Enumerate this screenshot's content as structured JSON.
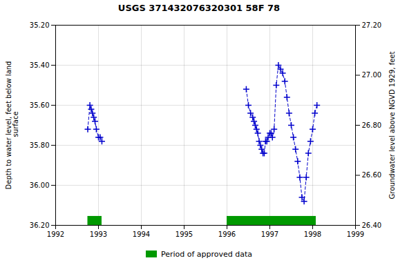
{
  "chart_data": {
    "type": "line",
    "title": "USGS 371432076320301 58F 78",
    "ylabel": "Depth to water level, feet below land\n surface",
    "y2label": "Groundwater level above NGVD 1929, feet",
    "xlim": [
      1992,
      1999
    ],
    "xticks": [
      1992,
      1993,
      1994,
      1995,
      1996,
      1997,
      1998,
      1999
    ],
    "ylim": [
      36.2,
      35.2
    ],
    "yticks": [
      {
        "value": 35.2,
        "label": "35.20"
      },
      {
        "value": 35.4,
        "label": "35.40"
      },
      {
        "value": 35.6,
        "label": "35.60"
      },
      {
        "value": 35.8,
        "label": "35.80"
      },
      {
        "value": 36.0,
        "label": "36.00"
      },
      {
        "value": 36.2,
        "label": "36.20"
      }
    ],
    "y2lim": [
      26.4,
      27.2
    ],
    "y2ticks": [
      {
        "value": 27.2,
        "label": "27.20"
      },
      {
        "value": 27.0,
        "label": "27.00"
      },
      {
        "value": 26.8,
        "label": "26.80"
      },
      {
        "value": 26.6,
        "label": "26.60"
      },
      {
        "value": 26.4,
        "label": "26.40"
      }
    ],
    "grid": true,
    "legend": "bottom",
    "series": [
      {
        "color": "#0000cc",
        "line_style": "dashed",
        "marker": "plus",
        "x": [
          1992.75,
          1992.8,
          1992.83,
          1992.86,
          1992.89,
          1992.92,
          1992.95,
          1993.0,
          1993.04,
          1993.08
        ],
        "values": [
          35.72,
          35.6,
          35.62,
          35.64,
          35.66,
          35.68,
          35.72,
          35.76,
          35.76,
          35.78
        ]
      },
      {
        "color": "#0000cc",
        "line_style": "dashed",
        "marker": "plus",
        "x": [
          1996.45,
          1996.5,
          1996.55,
          1996.6,
          1996.63,
          1996.66,
          1996.69,
          1996.72,
          1996.75,
          1996.78,
          1996.81,
          1996.84,
          1996.87,
          1996.9,
          1996.93,
          1996.96,
          1997.0,
          1997.03,
          1997.06,
          1997.1,
          1997.15,
          1997.2,
          1997.25,
          1997.3,
          1997.35,
          1997.4,
          1997.45,
          1997.5,
          1997.55,
          1997.6,
          1997.65,
          1997.7,
          1997.75,
          1997.8,
          1997.85,
          1997.9,
          1997.95,
          1998.0,
          1998.05,
          1998.1
        ],
        "values": [
          35.52,
          35.6,
          35.64,
          35.66,
          35.68,
          35.7,
          35.72,
          35.74,
          35.78,
          35.8,
          35.82,
          35.84,
          35.84,
          35.78,
          35.78,
          35.76,
          35.74,
          35.74,
          35.76,
          35.72,
          35.5,
          35.4,
          35.42,
          35.44,
          35.48,
          35.56,
          35.64,
          35.7,
          35.76,
          35.82,
          35.88,
          35.96,
          36.06,
          36.08,
          35.96,
          35.84,
          35.78,
          35.72,
          35.64,
          35.6
        ]
      }
    ],
    "approved": {
      "name": "Period of approved data",
      "color": "#009900",
      "segments": [
        [
          1992.75,
          1993.08
        ],
        [
          1996.0,
          1998.08
        ]
      ],
      "bottom": 36.2,
      "height": 0.045
    }
  }
}
